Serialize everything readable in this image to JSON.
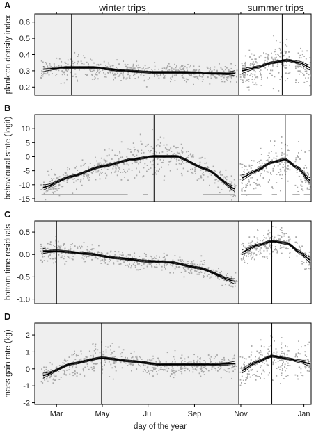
{
  "header": {
    "winter_label": "winter trips",
    "summer_label": "summer trips"
  },
  "xaxis": {
    "label": "day of the year",
    "ticks": [
      "Mar",
      "May",
      "Jul",
      "Sep",
      "Nov",
      "Jan"
    ]
  },
  "colors": {
    "winter_background": "#efefef",
    "points": "#a8a8a8",
    "fit": "#000000"
  },
  "chart_data": [
    {
      "type": "scatter",
      "panel": "A",
      "title": "",
      "xlabel": "day of the year",
      "ylabel": "plankton density index",
      "ylim": [
        0.15,
        0.65
      ],
      "yticks": [
        0.2,
        0.3,
        0.4,
        0.5,
        0.6
      ],
      "ytick_labels": [
        "0.2",
        "0.3",
        "0.4",
        "0.5",
        "0.6"
      ],
      "winter": {
        "xlim": [
          31,
          303
        ],
        "fit_x": [
          42,
          75,
          110,
          150,
          190,
          230,
          270,
          298
        ],
        "fit_y": [
          0.31,
          0.32,
          0.32,
          0.3,
          0.29,
          0.29,
          0.285,
          0.285
        ],
        "peak_day": 80,
        "noise_sd": 0.04
      },
      "summer": {
        "xlim": [
          303,
          373
        ],
        "fit_x": [
          306,
          320,
          335,
          350,
          362,
          372
        ],
        "fit_y": [
          0.3,
          0.32,
          0.35,
          0.365,
          0.35,
          0.32
        ],
        "peak_day": 345,
        "noise_sd": 0.06
      }
    },
    {
      "type": "scatter",
      "panel": "B",
      "title": "",
      "xlabel": "day of the year",
      "ylabel": "behavioural state (logit)",
      "ylim": [
        -16,
        15
      ],
      "yticks": [
        -15,
        -10,
        -5,
        0,
        5,
        10
      ],
      "ytick_labels": [
        "-15",
        "-10",
        "-5",
        "0",
        "5",
        "10"
      ],
      "winter": {
        "xlim": [
          31,
          303
        ],
        "fit_x": [
          42,
          80,
          120,
          160,
          190,
          220,
          260,
          298
        ],
        "fit_y": [
          -11,
          -7,
          -3.5,
          -1,
          0.1,
          0.1,
          -4.5,
          -11.5
        ],
        "peak_day": 190,
        "noise_sd": 3.2
      },
      "summer": {
        "xlim": [
          303,
          373
        ],
        "fit_x": [
          306,
          320,
          335,
          348,
          360,
          372
        ],
        "fit_y": [
          -7.5,
          -5,
          -2,
          -1,
          -4,
          -8.5
        ],
        "peak_day": 348,
        "noise_sd": 3.8
      }
    },
    {
      "type": "scatter",
      "panel": "C",
      "title": "",
      "xlabel": "day of the year",
      "ylabel": "bottom time residuals",
      "ylim": [
        -1.1,
        0.75
      ],
      "yticks": [
        -1.0,
        -0.5,
        0.0,
        0.5
      ],
      "ytick_labels": [
        "-1.0",
        "-0.5",
        "0.0",
        "0.5"
      ],
      "winter": {
        "xlim": [
          31,
          303
        ],
        "fit_x": [
          42,
          60,
          100,
          140,
          180,
          210,
          250,
          298
        ],
        "fit_y": [
          0.08,
          0.08,
          0.02,
          -0.08,
          -0.15,
          -0.17,
          -0.3,
          -0.6
        ],
        "peak_day": 60,
        "noise_sd": 0.12
      },
      "summer": {
        "xlim": [
          303,
          373
        ],
        "fit_x": [
          306,
          320,
          335,
          350,
          362,
          372
        ],
        "fit_y": [
          0.05,
          0.2,
          0.3,
          0.25,
          0.05,
          -0.12
        ],
        "peak_day": 335,
        "noise_sd": 0.15
      }
    },
    {
      "type": "scatter",
      "panel": "D",
      "title": "",
      "xlabel": "day of the year",
      "ylabel": "mass gain rate (kg)",
      "ylim": [
        -2.1,
        2.7
      ],
      "yticks": [
        -2,
        -1,
        0,
        1,
        2
      ],
      "ytick_labels": [
        "-2",
        "-1",
        "0",
        "1",
        "2"
      ],
      "winter": {
        "xlim": [
          31,
          303
        ],
        "fit_x": [
          42,
          80,
          120,
          160,
          200,
          250,
          298
        ],
        "fit_y": [
          -0.4,
          0.3,
          0.65,
          0.45,
          0.25,
          0.25,
          0.3
        ],
        "peak_day": 120,
        "noise_sd": 0.45
      },
      "summer": {
        "xlim": [
          303,
          373
        ],
        "fit_x": [
          306,
          320,
          335,
          350,
          362,
          372
        ],
        "fit_y": [
          -0.1,
          0.4,
          0.75,
          0.6,
          0.45,
          0.3
        ],
        "peak_day": 335,
        "noise_sd": 0.55
      }
    }
  ]
}
